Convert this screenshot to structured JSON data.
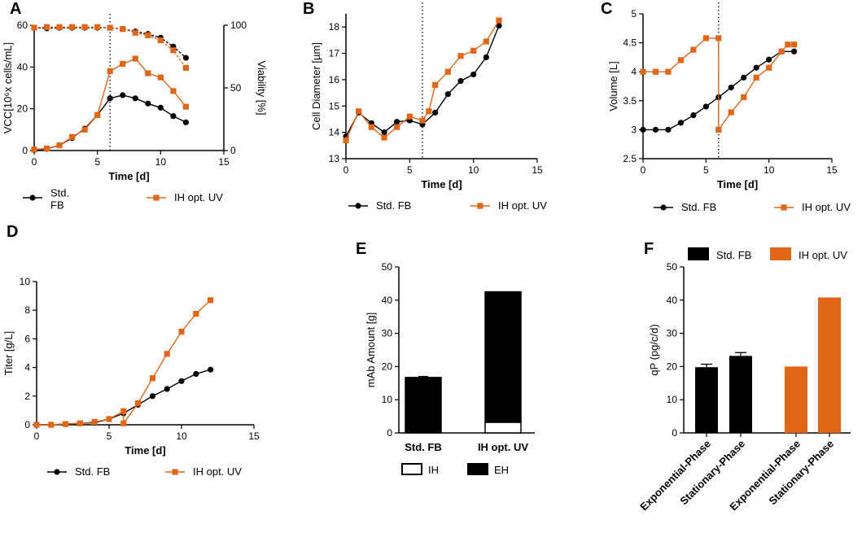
{
  "colors": {
    "std": "#000000",
    "ih": "#E0661A",
    "axis": "#000000"
  },
  "panels": [
    {
      "letter": "A",
      "chart_data": {
        "type": "line",
        "x_label": "Time [d]",
        "y_label": "VCC[10⁶x cells/mL]",
        "y2_label": "Viability [%]",
        "xlim": [
          0,
          15
        ],
        "ylim": [
          0,
          60
        ],
        "y2lim": [
          0,
          100
        ],
        "x_ticks": [
          0,
          5,
          10,
          15
        ],
        "y_ticks": [
          0,
          20,
          40,
          60
        ],
        "y2_ticks": [
          0,
          50,
          100
        ],
        "vline_x": 6,
        "series": [
          {
            "name": "Std. FB",
            "axis": "left",
            "marker": "circle",
            "color": "#000000",
            "x": [
              0,
              1,
              2,
              3,
              4,
              5,
              6,
              7,
              8,
              9,
              10,
              11,
              12
            ],
            "y": [
              0.3,
              0.8,
              2.5,
              6,
              10.5,
              17,
              25,
              26.5,
              25,
              22.5,
              20.5,
              16.5,
              13.5
            ]
          },
          {
            "name": "IH opt. UV",
            "axis": "left",
            "marker": "square",
            "color": "#E0661A",
            "x": [
              0,
              1,
              2,
              3,
              4,
              5,
              6,
              7,
              8,
              9,
              10,
              11,
              12
            ],
            "y": [
              0.5,
              1,
              2.5,
              6.5,
              10,
              17,
              38,
              41.5,
              44,
              37,
              35,
              28.5,
              21
            ]
          },
          {
            "name": "Std. FB viability",
            "axis": "right",
            "marker": "circle",
            "color": "#000000",
            "x": [
              0,
              1,
              2,
              3,
              4,
              5,
              6,
              7,
              8,
              9,
              10,
              11,
              12
            ],
            "y": [
              98,
              97.5,
              98,
              98,
              98,
              98,
              98,
              97,
              95,
              93,
              90,
              83,
              74
            ]
          },
          {
            "name": "IH opt. UV viability",
            "axis": "right",
            "marker": "square",
            "color": "#E0661A",
            "x": [
              0,
              1,
              2,
              3,
              4,
              5,
              6,
              7,
              8,
              9,
              10,
              11,
              12
            ],
            "y": [
              98,
              98.5,
              98.5,
              98.5,
              98.5,
              98.5,
              98,
              97,
              94,
              92,
              88,
              80,
              66
            ]
          }
        ],
        "legend": [
          {
            "label": "Std.\nFB",
            "marker": "circle",
            "color": "#000000"
          },
          {
            "label": "IH opt. UV",
            "marker": "square",
            "color": "#E0661A"
          }
        ]
      }
    },
    {
      "letter": "B",
      "chart_data": {
        "type": "line",
        "x_label": "Time [d]",
        "y_label": "Cell Diameter [µm]",
        "xlim": [
          0,
          15
        ],
        "ylim": [
          13,
          18.5
        ],
        "x_ticks": [
          0,
          5,
          10,
          15
        ],
        "y_ticks": [
          13,
          14,
          15,
          16,
          17,
          18
        ],
        "vline_x": 6,
        "series": [
          {
            "name": "Std. FB",
            "marker": "circle",
            "color": "#000000",
            "x": [
              0,
              1,
              2,
              3,
              4,
              5,
              6,
              7,
              8,
              9,
              10,
              11,
              12
            ],
            "y": [
              13.85,
              14.75,
              14.35,
              14.0,
              14.4,
              14.45,
              14.3,
              14.75,
              15.45,
              15.95,
              16.2,
              16.85,
              18.05
            ]
          },
          {
            "name": "IH opt. UV",
            "marker": "square",
            "color": "#E0661A",
            "x": [
              0,
              1,
              2,
              3,
              4,
              5,
              6,
              6.5,
              7,
              8,
              9,
              10,
              11,
              12
            ],
            "y": [
              13.7,
              14.8,
              14.2,
              13.8,
              14.2,
              14.6,
              14.45,
              14.8,
              15.8,
              16.3,
              16.9,
              17.1,
              17.45,
              18.25
            ]
          }
        ],
        "legend": [
          {
            "label": "Std. FB",
            "marker": "circle",
            "color": "#000000"
          },
          {
            "label": "IH opt. UV",
            "marker": "square",
            "color": "#E0661A"
          }
        ]
      }
    },
    {
      "letter": "C",
      "chart_data": {
        "type": "line",
        "x_label": "Time [d]",
        "y_label": "Volume [L]",
        "xlim": [
          0,
          15
        ],
        "ylim": [
          2.5,
          5.0
        ],
        "x_ticks": [
          0,
          5,
          10,
          15
        ],
        "y_ticks": [
          2.5,
          3.0,
          3.5,
          4.0,
          4.5,
          5.0
        ],
        "vline_x": 6,
        "series": [
          {
            "name": "Std. FB",
            "marker": "circle",
            "color": "#000000",
            "x": [
              0,
              1,
              2,
              3,
              4,
              5,
              6,
              7,
              8,
              9,
              10,
              11,
              12
            ],
            "y": [
              3.0,
              3.0,
              3.0,
              3.12,
              3.25,
              3.4,
              3.56,
              3.73,
              3.9,
              4.07,
              4.21,
              4.35,
              4.35
            ]
          },
          {
            "name": "IH opt. UV",
            "marker": "square",
            "color": "#E0661A",
            "x": [
              0,
              1,
              2,
              3,
              4,
              5,
              6,
              6,
              7,
              8,
              9,
              10,
              11,
              11.5,
              12
            ],
            "y": [
              4.0,
              4.0,
              4.0,
              4.2,
              4.38,
              4.58,
              4.58,
              3.0,
              3.3,
              3.56,
              3.9,
              4.07,
              4.35,
              4.47,
              4.47
            ]
          }
        ],
        "legend": [
          {
            "label": "Std. FB",
            "marker": "circle",
            "color": "#000000"
          },
          {
            "label": "IH opt. UV",
            "marker": "square",
            "color": "#E0661A"
          }
        ]
      }
    },
    {
      "letter": "D",
      "chart_data": {
        "type": "line",
        "x_label": "Time [d]",
        "y_label": "Titer [g/L]",
        "xlim": [
          0,
          15
        ],
        "ylim": [
          0,
          10
        ],
        "x_ticks": [
          0,
          5,
          10,
          15
        ],
        "y_ticks": [
          0,
          2,
          4,
          6,
          8,
          10
        ],
        "series": [
          {
            "name": "Std. FB",
            "marker": "circle",
            "color": "#000000",
            "x": [
              0,
              1,
              2,
              3,
              4,
              5,
              6,
              7,
              8,
              9,
              10,
              11,
              12
            ],
            "y": [
              0,
              0,
              0.05,
              0.1,
              0.15,
              0.4,
              0.8,
              1.4,
              2.0,
              2.5,
              3.05,
              3.55,
              3.85
            ]
          },
          {
            "name": "IH opt. UV",
            "marker": "square",
            "color": "#E0661A",
            "x": [
              0,
              1,
              2,
              3,
              4,
              5,
              6,
              6,
              7,
              8,
              9,
              10,
              11,
              12
            ],
            "y": [
              0,
              0,
              0.05,
              0.1,
              0.2,
              0.4,
              0.95,
              0.1,
              1.5,
              3.25,
              4.95,
              6.5,
              7.75,
              8.7
            ]
          }
        ],
        "legend": [
          {
            "label": "Std. FB",
            "marker": "circle",
            "color": "#000000"
          },
          {
            "label": "IH opt. UV",
            "marker": "square",
            "color": "#E0661A"
          }
        ]
      }
    },
    {
      "letter": "E",
      "chart_data": {
        "type": "bar",
        "stacked": true,
        "y_label": "mAb Amount [g]",
        "ylim": [
          0,
          50
        ],
        "y_ticks": [
          0,
          10,
          20,
          30,
          40,
          50
        ],
        "categories": [
          "Std. FB",
          "IH opt. UV"
        ],
        "series": [
          {
            "name": "IH",
            "fill": "#ffffff",
            "values": [
              0,
              3.2
            ]
          },
          {
            "name": "EH",
            "fill": "#000000",
            "values": [
              16.7,
              39.3
            ]
          }
        ],
        "error": [
          0.3,
          0
        ],
        "legend": [
          {
            "label": "IH",
            "fill": "#ffffff"
          },
          {
            "label": "EH",
            "fill": "#000000"
          }
        ]
      }
    },
    {
      "letter": "F",
      "chart_data": {
        "type": "bar",
        "y_label": "qP (pg/c/d)",
        "ylim": [
          0,
          50
        ],
        "y_ticks": [
          0,
          10,
          20,
          30,
          40,
          50
        ],
        "categories": [
          "Exponential-Phase",
          "Stationary-Phase",
          "Exponential-Phase",
          "Stationary-Phase"
        ],
        "groups": [
          "Std. FB",
          "Std. FB",
          "IH opt. UV",
          "IH opt. UV"
        ],
        "values": [
          19.8,
          23.2,
          20.0,
          40.8
        ],
        "error": [
          0.9,
          1.0,
          0,
          0
        ],
        "fills": [
          "#000000",
          "#000000",
          "#E0661A",
          "#E0661A"
        ],
        "legend": [
          {
            "label": "Std. FB",
            "fill": "#000000"
          },
          {
            "label": "IH opt. UV",
            "fill": "#E0661A"
          }
        ]
      }
    }
  ]
}
